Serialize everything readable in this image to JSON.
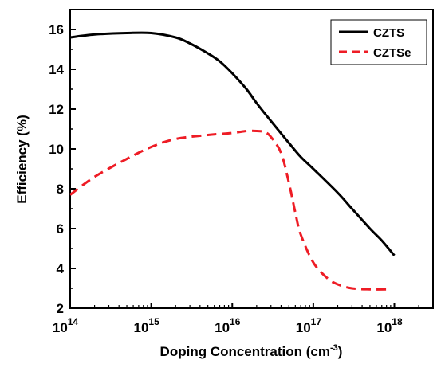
{
  "chart_data": {
    "type": "line",
    "xlabel": "Doping Concentration (cm",
    "xlabel_sup": "-3",
    "xlabel_end": ")",
    "ylabel": "Efficiency (%)",
    "x_scale": "log",
    "xlim": [
      100000000000000.0,
      3e+18
    ],
    "ylim": [
      2,
      17
    ],
    "x_ticks": [
      {
        "value": 100000000000000.0,
        "base": "10",
        "exp": "14"
      },
      {
        "value": 1000000000000000.0,
        "base": "10",
        "exp": "15"
      },
      {
        "value": 1e+16,
        "base": "10",
        "exp": "16"
      },
      {
        "value": 1e+17,
        "base": "10",
        "exp": "17"
      },
      {
        "value": 1e+18,
        "base": "10",
        "exp": "18"
      }
    ],
    "y_ticks": [
      "2",
      "4",
      "6",
      "8",
      "10",
      "12",
      "14",
      "16"
    ],
    "legend_position": "top-right",
    "grid": false,
    "series": [
      {
        "name": "CZTS",
        "color": "#000000",
        "style": "solid",
        "x": [
          100000000000000.0,
          200000000000000.0,
          500000000000000.0,
          1000000000000000.0,
          2000000000000000.0,
          3000000000000000.0,
          5000000000000000.0,
          7000000000000000.0,
          1e+16,
          1.5e+16,
          2e+16,
          3e+16,
          5e+16,
          7e+16,
          1e+17,
          2e+17,
          3e+17,
          5e+17,
          7e+17,
          1e+18
        ],
        "y": [
          15.6,
          15.75,
          15.82,
          15.82,
          15.6,
          15.3,
          14.8,
          14.4,
          13.8,
          13.0,
          12.3,
          11.4,
          10.3,
          9.6,
          9.0,
          7.8,
          7.0,
          6.0,
          5.4,
          4.65
        ]
      },
      {
        "name": "CZTSe",
        "color": "#ee1c25",
        "style": "dashed",
        "x": [
          100000000000000.0,
          200000000000000.0,
          500000000000000.0,
          1000000000000000.0,
          2000000000000000.0,
          5000000000000000.0,
          1e+16,
          1.5e+16,
          2e+16,
          2.5e+16,
          3e+16,
          4e+16,
          5e+16,
          6e+16,
          7e+16,
          1e+17,
          1.5e+17,
          2e+17,
          3e+17,
          5e+17,
          9e+17
        ],
        "y": [
          7.7,
          8.6,
          9.5,
          10.1,
          10.5,
          10.7,
          10.8,
          10.9,
          10.9,
          10.85,
          10.6,
          9.8,
          8.3,
          6.8,
          5.7,
          4.3,
          3.5,
          3.2,
          3.0,
          2.95,
          2.95
        ]
      }
    ]
  }
}
